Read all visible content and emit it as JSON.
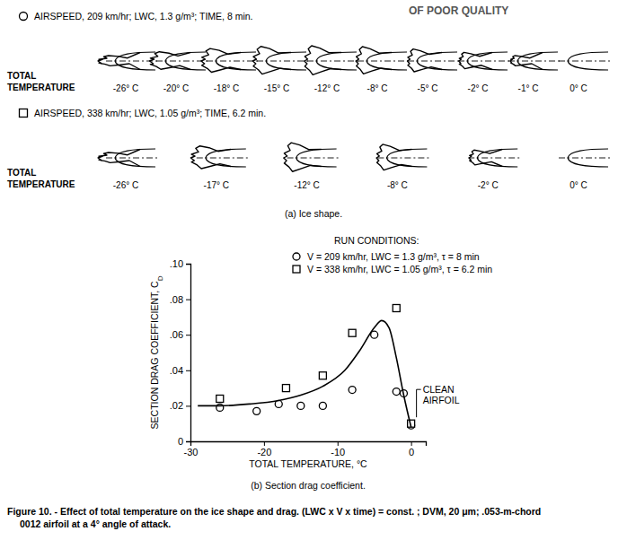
{
  "panel_a": {
    "stamp": "OF POOR QUALITY",
    "rows": [
      {
        "marker": "circle",
        "conditions": "AIRSPEED, 209 km/hr; LWC, 1.3 g/m³; TIME, 8 min.",
        "axis_label": "TOTAL TEMPERATURE",
        "temperatures": [
          "-26° C",
          "-20° C",
          "-18° C",
          "-15° C",
          "-12° C",
          "-8° C",
          "-5° C",
          "-2° C",
          "-1° C",
          "0° C"
        ]
      },
      {
        "marker": "square",
        "conditions": "AIRSPEED, 338 km/hr; LWC, 1.05 g/m³; TIME, 6.2 min.",
        "axis_label": "TOTAL TEMPERATURE",
        "temperatures": [
          "-26° C",
          "-17° C",
          "-12° C",
          "-8° C",
          "-2° C",
          "0° C"
        ]
      }
    ],
    "caption": "(a) Ice shape."
  },
  "chart_data": {
    "type": "scatter",
    "title": "RUN CONDITIONS:",
    "xlabel": "TOTAL TEMPERATURE, °C",
    "ylabel": "SECTION DRAG COEFFICIENT, CD",
    "caption": "(b) Section drag coefficient.",
    "xlim": [
      -30,
      2
    ],
    "xticks": [
      -30,
      -20,
      -10,
      0
    ],
    "ylim": [
      0,
      0.1
    ],
    "yticks": [
      0,
      {
        "value": 0.02,
        "label": ".02"
      },
      {
        "value": 0.04,
        "label": ".04"
      },
      {
        "value": 0.06,
        "label": ".06"
      },
      {
        "value": 0.08,
        "label": ".08"
      },
      {
        "value": 0.1,
        "label": ".10"
      }
    ],
    "grid": false,
    "legend": "top-right",
    "series": [
      {
        "name": "V = 209 km/hr, LWC = 1.3 g/m³, τ = 8 min",
        "marker": "circle",
        "color": "#000000",
        "x": [
          -26,
          -21,
          -18,
          -15,
          -12,
          -8,
          -5,
          -2,
          -1,
          0
        ],
        "values": [
          0.019,
          0.017,
          0.021,
          0.02,
          0.02,
          0.029,
          0.06,
          0.028,
          0.027,
          0.009
        ]
      },
      {
        "name": "V = 338 km/hr, LWC = 1.05 g/m³, τ = 6.2 min",
        "marker": "square",
        "color": "#000000",
        "x": [
          -26,
          -17,
          -12,
          -8,
          -2,
          0
        ],
        "values": [
          0.024,
          0.03,
          0.037,
          0.061,
          0.075,
          0.01
        ]
      },
      {
        "type": "line",
        "line_style": "solid",
        "color": "#000000",
        "x": [
          -29,
          -26,
          -22,
          -18,
          -15,
          -12,
          -9,
          -7,
          -5,
          -4,
          -3,
          -2,
          -1,
          0
        ],
        "values": [
          0.02,
          0.02,
          0.021,
          0.023,
          0.026,
          0.031,
          0.04,
          0.051,
          0.064,
          0.068,
          0.064,
          0.047,
          0.026,
          0.008
        ]
      }
    ],
    "annotations": [
      {
        "text": "CLEAN AIRFOIL",
        "x": 0,
        "y": 0.009
      }
    ]
  },
  "figure_caption": [
    "Figure 10. - Effect of total temperature on the ice shape and drag. (LWC x V x time) = const. ; DVM, 20 μm; .053-m-chord",
    "0012 airfoil at a 4° angle of attack."
  ]
}
